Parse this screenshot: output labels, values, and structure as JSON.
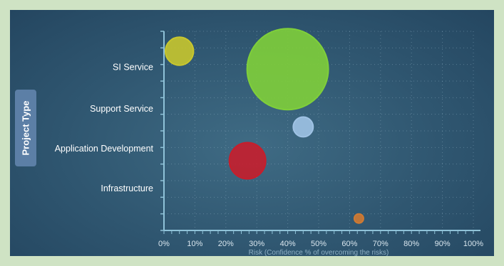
{
  "chart_data": {
    "type": "bubble",
    "ylabel": "Project Type",
    "xlabel": "Risk (Confidence % of overcoming the risks)",
    "xlim": [
      0,
      100
    ],
    "ylim": [
      0,
      100
    ],
    "xticks": [
      "0%",
      "10%",
      "20%",
      "30%",
      "40%",
      "50%",
      "60%",
      "70%",
      "80%",
      "90%",
      "100%"
    ],
    "categories": [
      {
        "label": "SI Service",
        "y": 82
      },
      {
        "label": "Support Service",
        "y": 61
      },
      {
        "label": "Application Development",
        "y": 41
      },
      {
        "label": "Infrastructure",
        "y": 21
      }
    ],
    "grid": true,
    "points": [
      {
        "x": 5,
        "y": 90,
        "size": 12,
        "color": "#c8c62e"
      },
      {
        "x": 40,
        "y": 81,
        "size": 100,
        "color": "#7fcf3a"
      },
      {
        "x": 45,
        "y": 52,
        "size": 6,
        "color": "#9fc2e4"
      },
      {
        "x": 27,
        "y": 35,
        "size": 20,
        "color": "#c71e2c"
      },
      {
        "x": 63,
        "y": 6,
        "size": 1.3,
        "color": "#d07a32"
      }
    ]
  }
}
